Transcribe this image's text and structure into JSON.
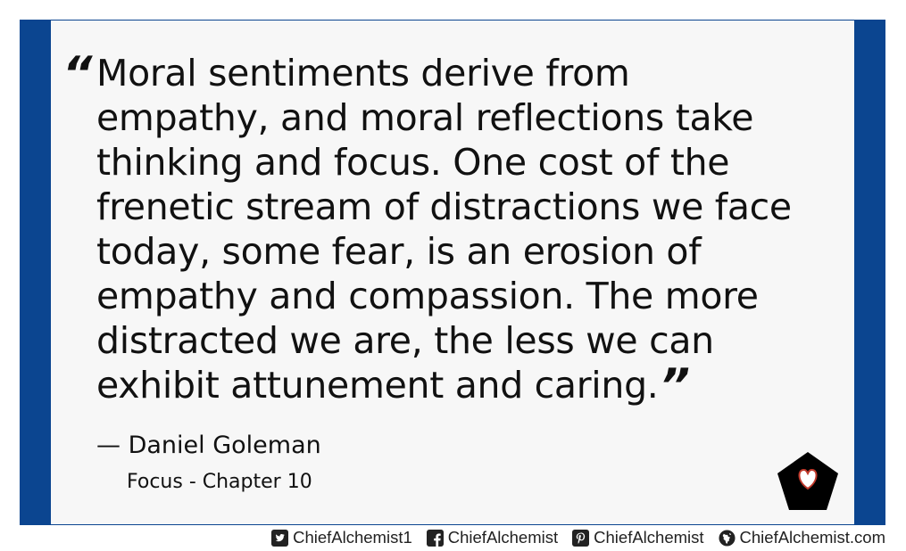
{
  "quote": {
    "text": "Moral sentiments derive from empathy, and moral reflections take thinking and focus. One cost of the frenetic stream of distractions we face today, some fear, is an erosion of empathy and compassion. The more distracted we are, the less we can exhibit attunement and caring.",
    "open_mark": "“",
    "close_mark": "”"
  },
  "attribution": {
    "author": "— Daniel Goleman",
    "source": "Focus - Chapter 10"
  },
  "badge": {
    "icon": "heart-pentagon-icon",
    "fill": "#000000",
    "heart_color": "#ffffff",
    "heart_outline": "#c0392b"
  },
  "footer": {
    "links": [
      {
        "icon": "twitter-icon",
        "label": "ChiefAlchemist1"
      },
      {
        "icon": "facebook-icon",
        "label": "ChiefAlchemist"
      },
      {
        "icon": "pinterest-icon",
        "label": "ChiefAlchemist"
      },
      {
        "icon": "globe-icon",
        "label": "ChiefAlchemist.com"
      }
    ]
  },
  "colors": {
    "frame": "#0b4590",
    "panel": "#f7f7f7",
    "text": "#111111"
  }
}
